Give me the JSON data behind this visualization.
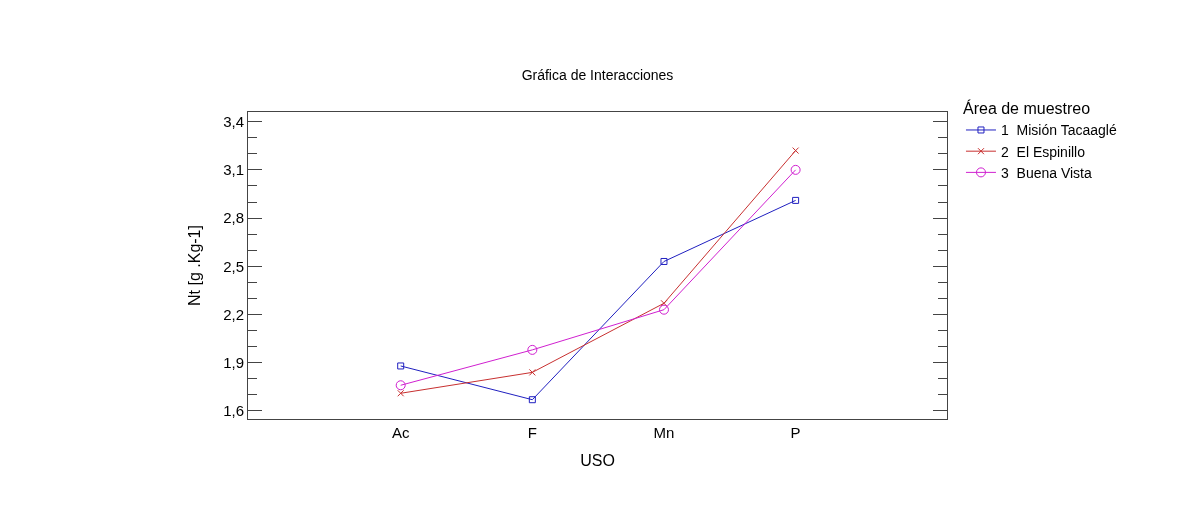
{
  "chart_data": {
    "type": "line",
    "title": "Gráfica de Interacciones",
    "xlabel": "USO",
    "ylabel": "Nt [g .Kg-1]",
    "legend_title": "Área de muestreo",
    "categories": [
      "Ac",
      "F",
      "Mn",
      "P"
    ],
    "series": [
      {
        "name": "1  Misión Tacaaglé",
        "color": "#2020c0",
        "marker": "square",
        "values": [
          1.88,
          1.67,
          2.53,
          2.91
        ]
      },
      {
        "name": "2  El Espinillo",
        "color": "#c83030",
        "marker": "cross",
        "values": [
          1.71,
          1.84,
          2.27,
          3.22
        ]
      },
      {
        "name": "3  Buena Vista",
        "color": "#d020d0",
        "marker": "circle",
        "values": [
          1.76,
          1.98,
          2.23,
          3.1
        ]
      }
    ],
    "ylim": [
      1.55,
      3.46
    ],
    "yticks": [
      {
        "value": 1.6,
        "label": "1,6"
      },
      {
        "value": 1.7,
        "label": null
      },
      {
        "value": 1.8,
        "label": null
      },
      {
        "value": 1.9,
        "label": "1,9"
      },
      {
        "value": 2.0,
        "label": null
      },
      {
        "value": 2.1,
        "label": null
      },
      {
        "value": 2.2,
        "label": "2,2"
      },
      {
        "value": 2.3,
        "label": null
      },
      {
        "value": 2.4,
        "label": null
      },
      {
        "value": 2.5,
        "label": "2,5"
      },
      {
        "value": 2.6,
        "label": null
      },
      {
        "value": 2.7,
        "label": null
      },
      {
        "value": 2.8,
        "label": "2,8"
      },
      {
        "value": 2.9,
        "label": null
      },
      {
        "value": 3.0,
        "label": null
      },
      {
        "value": 3.1,
        "label": "3,1"
      },
      {
        "value": 3.2,
        "label": null
      },
      {
        "value": 3.3,
        "label": null
      },
      {
        "value": 3.4,
        "label": "3,4"
      }
    ],
    "grid": false,
    "legend": "top right",
    "line_style": "solid"
  }
}
